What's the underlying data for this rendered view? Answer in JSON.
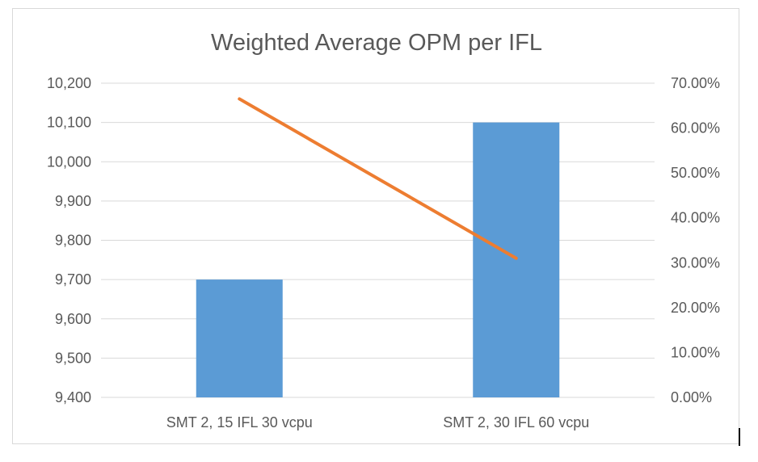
{
  "chart_data": {
    "type": "bar",
    "title": "Weighted Average OPM per IFL",
    "categories": [
      "SMT 2, 15 IFL 30 vcpu",
      "SMT 2, 30 IFL 60 vcpu"
    ],
    "series": [
      {
        "type": "bar",
        "axis": "left",
        "values": [
          9700,
          10100
        ],
        "color": "#5b9bd5"
      },
      {
        "type": "line",
        "axis": "right",
        "values": [
          0.665,
          0.31
        ],
        "color": "#ed7d31"
      }
    ],
    "y_left": {
      "ylim": [
        9400,
        10200
      ],
      "ticks": [
        9400,
        9500,
        9600,
        9700,
        9800,
        9900,
        10000,
        10100,
        10200
      ],
      "tick_labels": [
        "9,400",
        "9,500",
        "9,600",
        "9,700",
        "9,800",
        "9,900",
        "10,000",
        "10,100",
        "10,200"
      ]
    },
    "y_right": {
      "ylim": [
        0,
        0.7
      ],
      "ticks": [
        0,
        0.1,
        0.2,
        0.3,
        0.4,
        0.5,
        0.6,
        0.7
      ],
      "tick_labels": [
        "0.00%",
        "10.00%",
        "20.00%",
        "30.00%",
        "40.00%",
        "50.00%",
        "60.00%",
        "70.00%"
      ]
    },
    "grid": true,
    "legend": "none",
    "colors": {
      "gridline": "#d9d9d9",
      "axis_text": "#595959"
    }
  }
}
